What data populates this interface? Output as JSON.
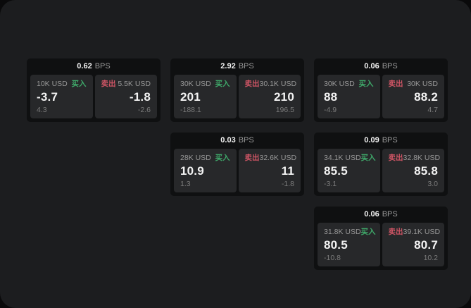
{
  "labels": {
    "buy": "买入",
    "sell": "卖出",
    "bps_unit": "BPS"
  },
  "colors": {
    "page_bg": "#0a0a0b",
    "window_bg": "#1c1d1f",
    "card_bg": "#0f1011",
    "panel_bg": "#27282a",
    "text_primary": "#f3f3f3",
    "text_muted": "#989898",
    "text_dim": "#7b7b7b",
    "buy_green": "#3fa96a",
    "sell_red": "#cf5565"
  },
  "cards": [
    {
      "bps": "0.62",
      "layout": {
        "row": 1,
        "col": 1
      },
      "buy": {
        "amount": "10K USD",
        "value": "-3.7",
        "delta": "4.3"
      },
      "sell": {
        "amount": "5.5K USD",
        "value": "-1.8",
        "delta": "-2.6"
      }
    },
    {
      "bps": "2.92",
      "layout": {
        "row": 1,
        "col": 2
      },
      "buy": {
        "amount": "30K USD",
        "value": "201",
        "delta": "-188.1"
      },
      "sell": {
        "amount": "30.1K USD",
        "value": "210",
        "delta": "196.5"
      }
    },
    {
      "bps": "0.06",
      "layout": {
        "row": 1,
        "col": 3
      },
      "buy": {
        "amount": "30K USD",
        "value": "88",
        "delta": "-4.9"
      },
      "sell": {
        "amount": "30K USD",
        "value": "88.2",
        "delta": "4.7"
      }
    },
    {
      "bps": "0.03",
      "layout": {
        "row": 2,
        "col": 2
      },
      "buy": {
        "amount": "28K USD",
        "value": "10.9",
        "delta": "1.3"
      },
      "sell": {
        "amount": "32.6K USD",
        "value": "11",
        "delta": "-1.8"
      }
    },
    {
      "bps": "0.09",
      "layout": {
        "row": 2,
        "col": 3
      },
      "buy": {
        "amount": "34.1K USD",
        "value": "85.5",
        "delta": "-3.1"
      },
      "sell": {
        "amount": "32.8K USD",
        "value": "85.8",
        "delta": "3.0"
      }
    },
    {
      "bps": "0.06",
      "layout": {
        "row": 3,
        "col": 3
      },
      "buy": {
        "amount": "31.8K USD",
        "value": "80.5",
        "delta": "-10.8"
      },
      "sell": {
        "amount": "39.1K USD",
        "value": "80.7",
        "delta": "10.2"
      }
    }
  ]
}
